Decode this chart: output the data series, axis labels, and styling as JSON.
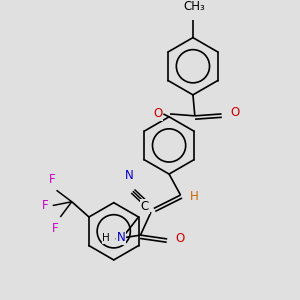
{
  "bg_color": "#e0e0e0",
  "bond_color": "#000000",
  "bw": 1.2,
  "colors": {
    "O": "#cc0000",
    "N": "#0000cc",
    "F": "#cc00cc",
    "C": "#000000",
    "H_label": "#cc6600"
  },
  "font_size": 8.5,
  "small_font": 7.5,
  "xlim": [
    0,
    300
  ],
  "ylim": [
    0,
    300
  ]
}
